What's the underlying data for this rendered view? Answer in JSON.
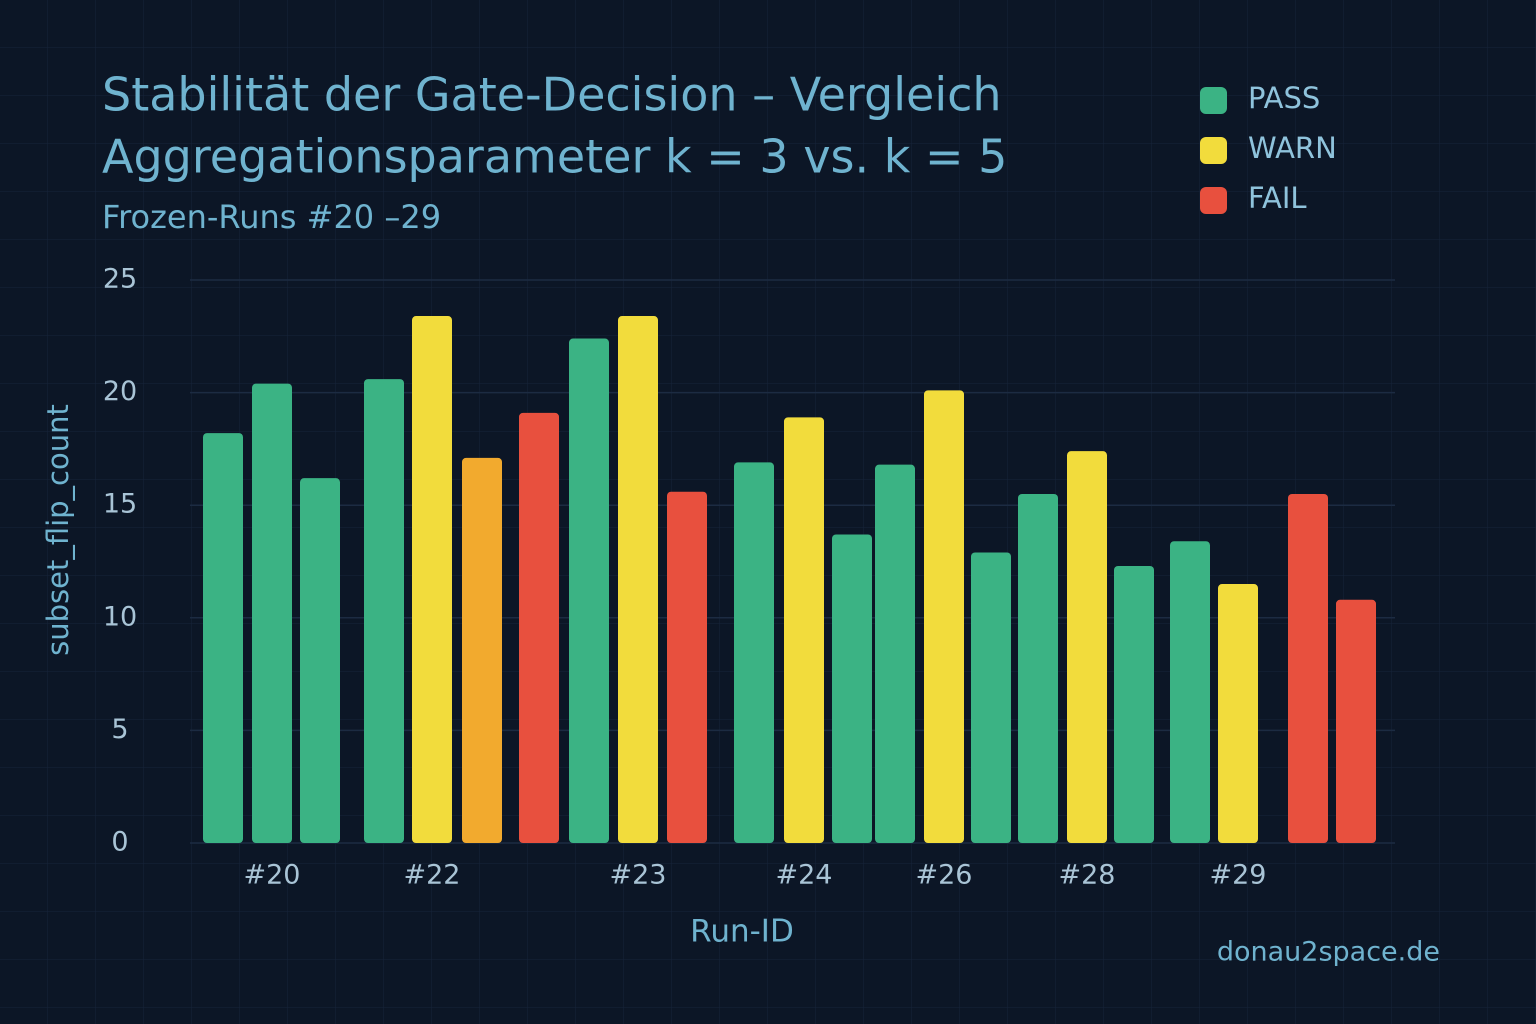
{
  "chart_data": {
    "type": "bar",
    "title": [
      "Stabilität der Gate-Decision – Vergleich",
      "Aggregationsparameter k = 3 vs. k = 5"
    ],
    "subtitle": "Frozen-Runs #20 –29",
    "x_label": "Run-ID",
    "y_label": "subset_flip_count",
    "source": "donau2space.de",
    "categories": [
      null,
      "#20",
      null,
      null,
      "#22",
      null,
      null,
      null,
      "#23",
      null,
      null,
      "#24",
      null,
      null,
      "#26",
      null,
      null,
      "#28",
      null,
      null,
      "#29",
      null,
      null
    ],
    "values": [
      18.2,
      20.4,
      16.2,
      20.6,
      23.4,
      17.1,
      19.1,
      22.4,
      23.4,
      15.6,
      16.9,
      18.9,
      13.7,
      16.8,
      20.1,
      12.9,
      15.5,
      17.4,
      12.3,
      13.4,
      11.5,
      15.5,
      10.8
    ],
    "colors": [
      "#3bb384",
      "#3bb384",
      "#3bb384",
      "#3bb384",
      "#f2dc3c",
      "#f2aa2e",
      "#e8503e",
      "#3bb384",
      "#f2dc3c",
      "#e8503e",
      "#3bb384",
      "#f2dc3c",
      "#3bb384",
      "#3bb384",
      "#f2dc3c",
      "#3bb384",
      "#3bb384",
      "#f2dc3c",
      "#3bb384",
      "#3bb384",
      "#f2dc3c",
      "#e8503e",
      "#e8503e"
    ],
    "legend": [
      {
        "name": "PASS",
        "color": "#3bb384"
      },
      {
        "name": "WARN",
        "color": "#f2dc3c"
      },
      {
        "name": "FAIL",
        "color": "#e8503e"
      }
    ],
    "ylim": [
      0,
      25
    ],
    "yticks": [
      0,
      5,
      10,
      15,
      20,
      25
    ],
    "grid": true
  }
}
